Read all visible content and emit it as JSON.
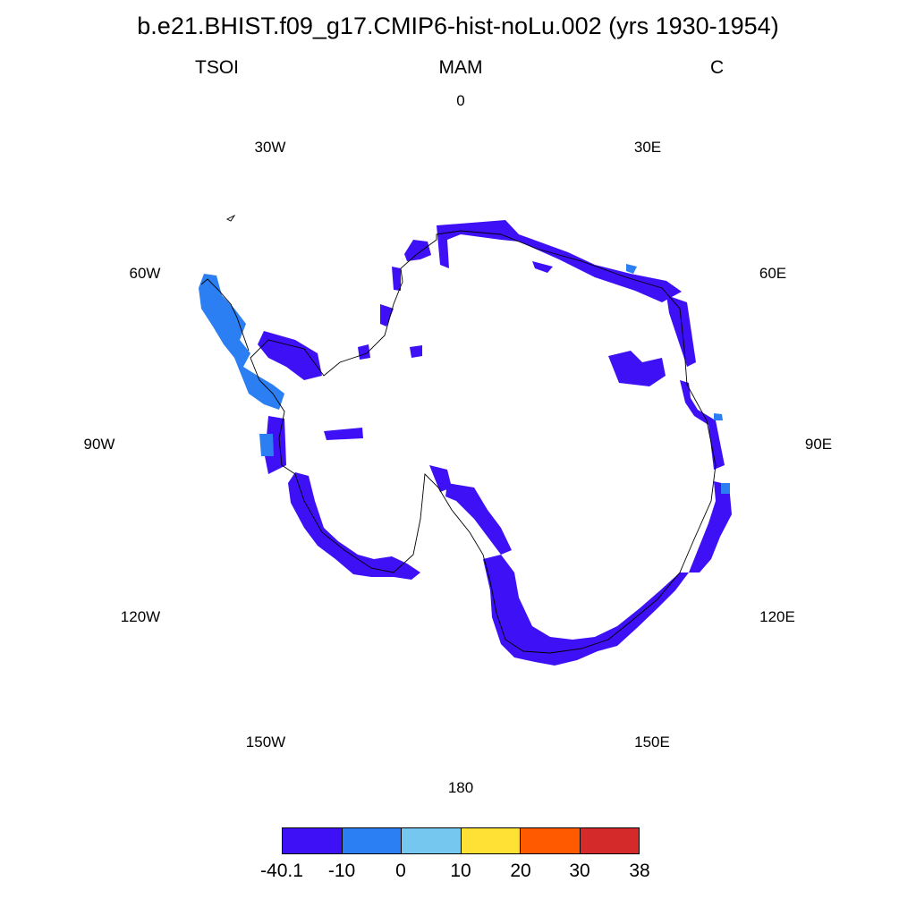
{
  "title": "b.e21.BHIST.f09_g17.CMIP6-hist-noLu.002 (yrs 1930-1954)",
  "subtitle": {
    "left": "TSOI",
    "center": "MAM",
    "right": "C"
  },
  "longitude_labels": [
    "0",
    "30E",
    "60E",
    "90E",
    "120E",
    "150E",
    "180",
    "150W",
    "120W",
    "90W",
    "60W",
    "30W"
  ],
  "map": {
    "projection": "south-polar-stereographic",
    "region": "Antarctica",
    "grid": false,
    "background": "#ffffff"
  },
  "colorbar": {
    "colors": [
      "#3d10f5",
      "#2b7ff2",
      "#76c7f0",
      "#ffe135",
      "#ff5a00",
      "#d42a2a"
    ],
    "labels": [
      "-40.1",
      "-10",
      "0",
      "10",
      "20",
      "30",
      "38"
    ]
  }
}
